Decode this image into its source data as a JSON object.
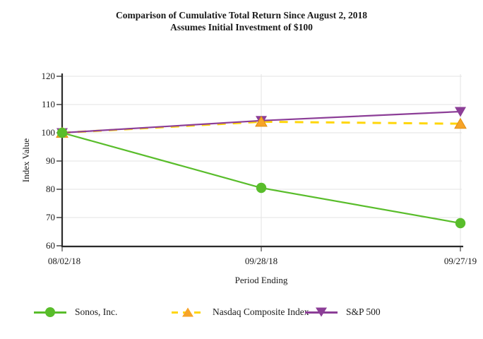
{
  "title": {
    "line1": "Comparison of Cumulative Total Return Since August 2, 2018",
    "line2": "Assumes Initial Investment of $100"
  },
  "chart_data": {
    "type": "line",
    "categories": [
      "08/02/18",
      "09/28/18",
      "09/27/19"
    ],
    "series": [
      {
        "name": "Sonos, Inc.",
        "values": [
          100,
          80.5,
          68
        ],
        "color": "#59bd2b",
        "marker": "circle",
        "marker_color": "#59bd2b",
        "line_style": "solid"
      },
      {
        "name": "Nasdaq Composite Index",
        "values": [
          100,
          103.9,
          103.2
        ],
        "color": "#ffd60a",
        "marker": "triangle-up",
        "marker_color": "#f7a428",
        "marker_edge": "#e08f12",
        "line_style": "dashed"
      },
      {
        "name": "S&P 500",
        "values": [
          100,
          104.3,
          107.5
        ],
        "color": "#8c3e97",
        "marker": "triangle-down",
        "marker_color": "#8c3e97",
        "line_style": "solid"
      }
    ],
    "title": "Comparison of Cumulative Total Return Since August 2, 2018 — Assumes Initial Investment of $100",
    "xlabel": "Period Ending",
    "ylabel": "Index Value",
    "ylim": [
      60,
      120
    ],
    "y_ticks": [
      120,
      110,
      100,
      90,
      80,
      70,
      60
    ],
    "grid": true,
    "legend_position": "bottom",
    "axis_color": "#2b2b2b",
    "grid_color": "#e3e3e3"
  }
}
